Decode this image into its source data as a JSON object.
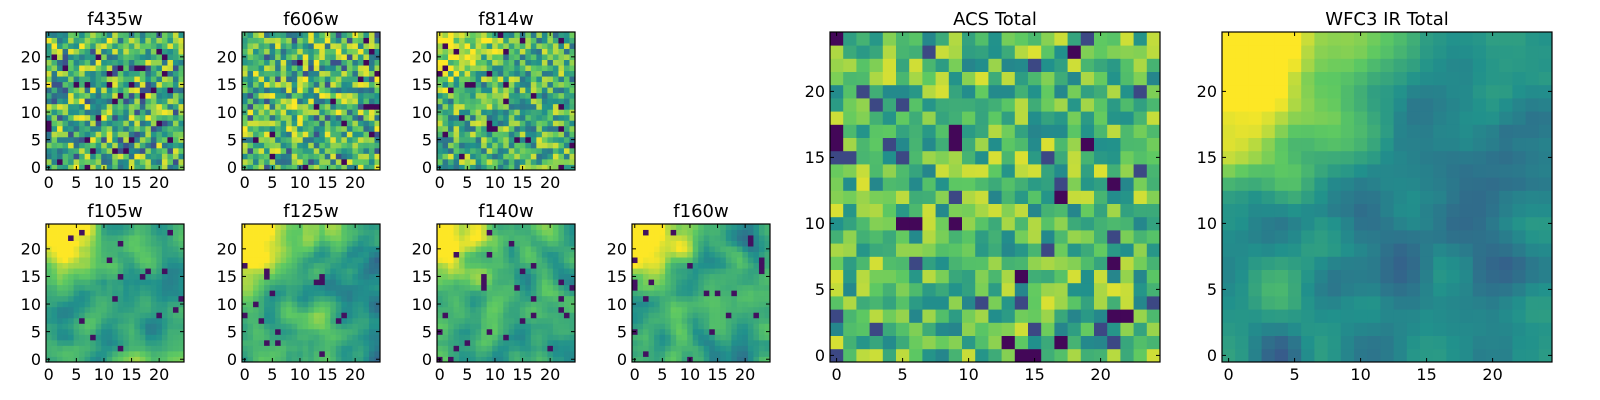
{
  "figure": {
    "description_colormap": "viridis",
    "colors": {
      "viridis": [
        "#440154",
        "#3b528b",
        "#21918c",
        "#5ec962",
        "#fde725"
      ],
      "frame": "#000000"
    }
  },
  "chart_data": [
    {
      "id": "f435w",
      "type": "heatmap",
      "title": "f435w",
      "grid_size": 25,
      "pattern": "random-high",
      "xticks": [
        "0",
        "5",
        "10",
        "15",
        "20"
      ],
      "yticks": [
        "0",
        "5",
        "10",
        "15",
        "20"
      ],
      "xlim": [
        0,
        24
      ],
      "ylim": [
        0,
        24
      ]
    },
    {
      "id": "f606w",
      "type": "heatmap",
      "title": "f606w",
      "grid_size": 25,
      "pattern": "random-high",
      "xticks": [
        "0",
        "5",
        "10",
        "15",
        "20"
      ],
      "yticks": [
        "0",
        "5",
        "10",
        "15",
        "20"
      ],
      "xlim": [
        0,
        24
      ],
      "ylim": [
        0,
        24
      ]
    },
    {
      "id": "f814w",
      "type": "heatmap",
      "title": "f814w",
      "grid_size": 25,
      "pattern": "random-high-corner",
      "xticks": [
        "0",
        "5",
        "10",
        "15",
        "20"
      ],
      "yticks": [
        "0",
        "5",
        "10",
        "15",
        "20"
      ],
      "xlim": [
        0,
        24
      ],
      "ylim": [
        0,
        24
      ]
    },
    {
      "id": "f105w",
      "type": "heatmap",
      "title": "f105w",
      "grid_size": 25,
      "pattern": "smooth-corner",
      "xticks": [
        "0",
        "5",
        "10",
        "15",
        "20"
      ],
      "yticks": [
        "0",
        "5",
        "10",
        "15",
        "20"
      ],
      "xlim": [
        0,
        24
      ],
      "ylim": [
        0,
        24
      ]
    },
    {
      "id": "f125w",
      "type": "heatmap",
      "title": "f125w",
      "grid_size": 25,
      "pattern": "smooth-corner",
      "xticks": [
        "0",
        "5",
        "10",
        "15",
        "20"
      ],
      "yticks": [
        "0",
        "5",
        "10",
        "15",
        "20"
      ],
      "xlim": [
        0,
        24
      ],
      "ylim": [
        0,
        24
      ]
    },
    {
      "id": "f140w",
      "type": "heatmap",
      "title": "f140w",
      "grid_size": 25,
      "pattern": "smooth-corner",
      "xticks": [
        "0",
        "5",
        "10",
        "15",
        "20"
      ],
      "yticks": [
        "0",
        "5",
        "10",
        "15",
        "20"
      ],
      "xlim": [
        0,
        24
      ],
      "ylim": [
        0,
        24
      ]
    },
    {
      "id": "f160w",
      "type": "heatmap",
      "title": "f160w",
      "grid_size": 25,
      "pattern": "smooth-corner",
      "xticks": [
        "0",
        "5",
        "10",
        "15",
        "20"
      ],
      "yticks": [
        "0",
        "5",
        "10",
        "15",
        "20"
      ],
      "xlim": [
        0,
        24
      ],
      "ylim": [
        0,
        24
      ]
    },
    {
      "id": "acs-total",
      "type": "heatmap",
      "title": "ACS Total",
      "grid_size": 25,
      "pattern": "random-mid",
      "xticks": [
        "0",
        "5",
        "10",
        "15",
        "20"
      ],
      "yticks": [
        "0",
        "5",
        "10",
        "15",
        "20"
      ],
      "xlim": [
        0,
        24
      ],
      "ylim": [
        0,
        24
      ]
    },
    {
      "id": "wfc3-ir-total",
      "type": "heatmap",
      "title": "WFC3 IR Total",
      "grid_size": 25,
      "pattern": "smooth-corner-dark",
      "xticks": [
        "0",
        "5",
        "10",
        "15",
        "20"
      ],
      "yticks": [
        "0",
        "5",
        "10",
        "15",
        "20"
      ],
      "xlim": [
        0,
        24
      ],
      "ylim": [
        0,
        24
      ]
    }
  ]
}
